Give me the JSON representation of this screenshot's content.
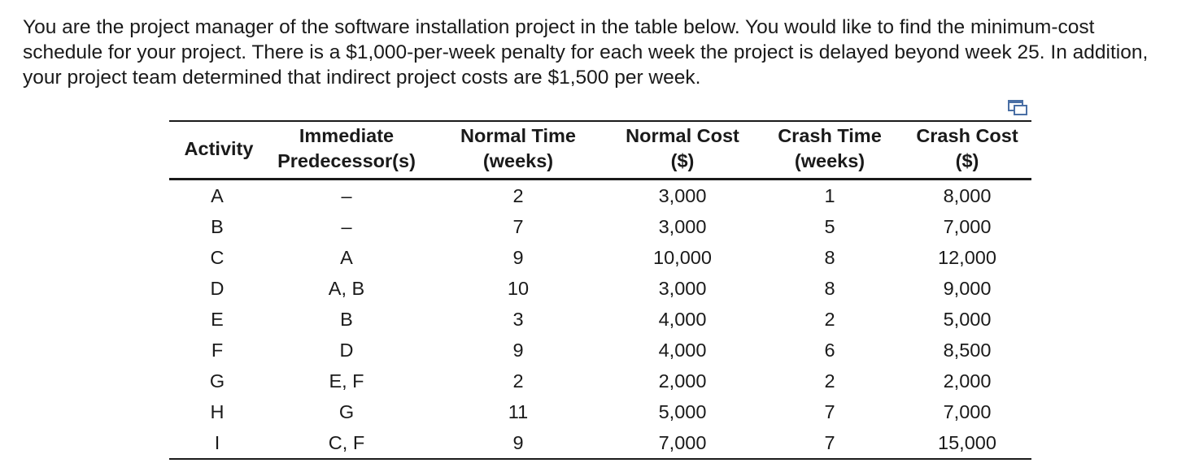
{
  "intro_text": "You are the project manager of the software installation project in the table below. You would like to find the minimum-cost schedule for your project. There is a $1,000-per-week penalty for each week the project is delayed beyond week 25. In addition, your project team determined that indirect project costs are $1,500 per week.",
  "icons": {
    "copy": "copy-icon"
  },
  "table": {
    "headers": {
      "activity": "Activity",
      "predecessor_1": "Immediate",
      "predecessor_2": "Predecessor(s)",
      "normal_time_1": "Normal Time",
      "normal_time_2": "(weeks)",
      "normal_cost_1": "Normal Cost",
      "normal_cost_2": "($)",
      "crash_time_1": "Crash Time",
      "crash_time_2": "(weeks)",
      "crash_cost_1": "Crash Cost",
      "crash_cost_2": "($)"
    },
    "rows": [
      {
        "activity": "A",
        "predecessors": "–",
        "normal_time": "2",
        "normal_cost": "3,000",
        "crash_time": "1",
        "crash_cost": "8,000"
      },
      {
        "activity": "B",
        "predecessors": "–",
        "normal_time": "7",
        "normal_cost": "3,000",
        "crash_time": "5",
        "crash_cost": "7,000"
      },
      {
        "activity": "C",
        "predecessors": "A",
        "normal_time": "9",
        "normal_cost": "10,000",
        "crash_time": "8",
        "crash_cost": "12,000"
      },
      {
        "activity": "D",
        "predecessors": "A, B",
        "normal_time": "10",
        "normal_cost": "3,000",
        "crash_time": "8",
        "crash_cost": "9,000"
      },
      {
        "activity": "E",
        "predecessors": "B",
        "normal_time": "3",
        "normal_cost": "4,000",
        "crash_time": "2",
        "crash_cost": "5,000"
      },
      {
        "activity": "F",
        "predecessors": "D",
        "normal_time": "9",
        "normal_cost": "4,000",
        "crash_time": "6",
        "crash_cost": "8,500"
      },
      {
        "activity": "G",
        "predecessors": "E, F",
        "normal_time": "2",
        "normal_cost": "2,000",
        "crash_time": "2",
        "crash_cost": "2,000"
      },
      {
        "activity": "H",
        "predecessors": "G",
        "normal_time": "11",
        "normal_cost": "5,000",
        "crash_time": "7",
        "crash_cost": "7,000"
      },
      {
        "activity": "I",
        "predecessors": "C, F",
        "normal_time": "9",
        "normal_cost": "7,000",
        "crash_time": "7",
        "crash_cost": "15,000"
      }
    ]
  }
}
